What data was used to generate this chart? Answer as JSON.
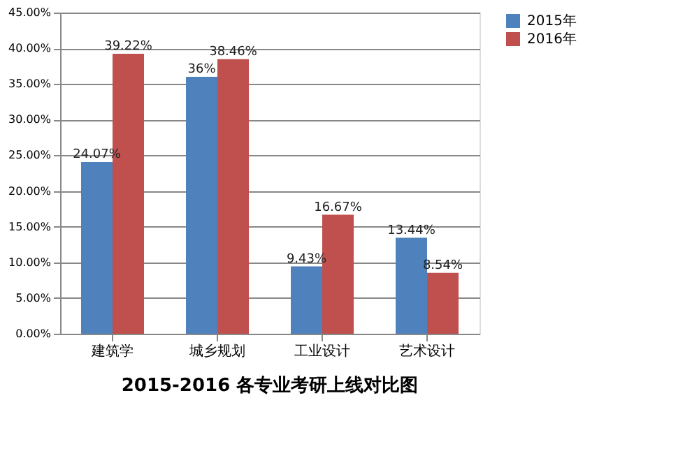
{
  "chart_data": {
    "type": "bar",
    "title": "2015-2016 各专业考研上线对比图",
    "categories": [
      "建筑学",
      "城乡规划",
      "工业设计",
      "艺术设计"
    ],
    "series": [
      {
        "name": "2015年",
        "color": "#4f81bd",
        "values": [
          24.07,
          36,
          9.43,
          13.44
        ],
        "value_labels": [
          "24.07%",
          "36%",
          "9.43%",
          "13.44%"
        ]
      },
      {
        "name": "2016年",
        "color": "#c0504d",
        "values": [
          39.22,
          38.46,
          16.67,
          8.54
        ],
        "value_labels": [
          "39.22%",
          "38.46%",
          "16.67%",
          "8.54%"
        ]
      }
    ],
    "ylim": [
      0,
      45
    ],
    "yticks": [
      {
        "value": 0,
        "label": "0.00%"
      },
      {
        "value": 5,
        "label": "5.00%"
      },
      {
        "value": 10,
        "label": "10.00%"
      },
      {
        "value": 15,
        "label": "15.00%"
      },
      {
        "value": 20,
        "label": "20.00%"
      },
      {
        "value": 25,
        "label": "25.00%"
      },
      {
        "value": 30,
        "label": "30.00%"
      },
      {
        "value": 35,
        "label": "35.00%"
      },
      {
        "value": 40,
        "label": "40.00%"
      },
      {
        "value": 45,
        "label": "45.00%"
      }
    ],
    "grid": "y",
    "legend": "right"
  }
}
